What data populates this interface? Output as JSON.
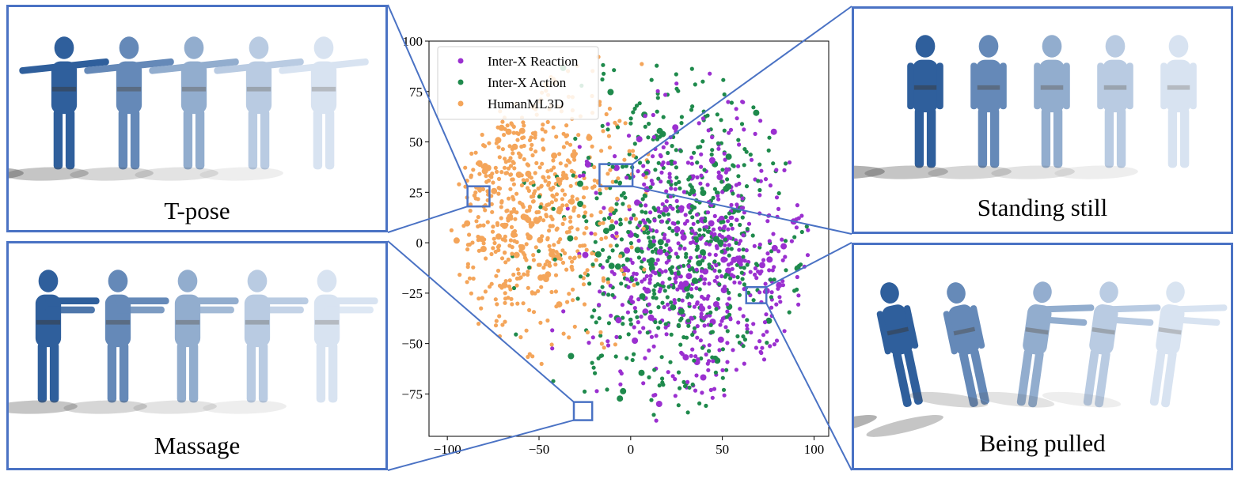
{
  "captions": {
    "top_left": "T-pose",
    "bottom_left": "Massage",
    "top_right": "Standing still",
    "bottom_right": "Being pulled"
  },
  "colors": {
    "frame": "#4a72c4",
    "figure_dark": "#2f5f9c",
    "figure_light": "#b9cde6",
    "shadow": "#555555"
  },
  "chart_data": {
    "type": "scatter",
    "title": "",
    "xlabel": "",
    "ylabel": "",
    "xlim": [
      -110,
      108
    ],
    "ylim": [
      -96,
      100
    ],
    "xticks": [
      -100,
      -50,
      0,
      50,
      100
    ],
    "yticks": [
      100,
      75,
      50,
      25,
      0,
      -25,
      -50,
      -75
    ],
    "grid": false,
    "legend_position": "top-left",
    "series": [
      {
        "name": "Inter-X Reaction",
        "color": "#9b30d0",
        "approx_points": 650,
        "region": "x from -60 to 90, y from -85 to 65, concentrated on right side"
      },
      {
        "name": "Inter-X Action",
        "color": "#1f8a4c",
        "approx_points": 650,
        "region": "x from -45 to 95, y from -88 to 85"
      },
      {
        "name": "HumanML3D",
        "color": "#f4a55a",
        "approx_points": 650,
        "region": "x from -105 to 5, y from -65 to 92, concentrated on left side"
      }
    ],
    "highlight_boxes": [
      {
        "target": "top_left",
        "x": [
          -89,
          -77
        ],
        "y": [
          18,
          28
        ]
      },
      {
        "target": "top_right",
        "x": [
          -17,
          1
        ],
        "y": [
          28,
          39
        ]
      },
      {
        "target": "bottom_right",
        "x": [
          63,
          74
        ],
        "y": [
          -30,
          -22
        ]
      },
      {
        "target": "bottom_left",
        "x": [
          -31,
          -21
        ],
        "y": [
          -88,
          -79
        ]
      }
    ]
  }
}
